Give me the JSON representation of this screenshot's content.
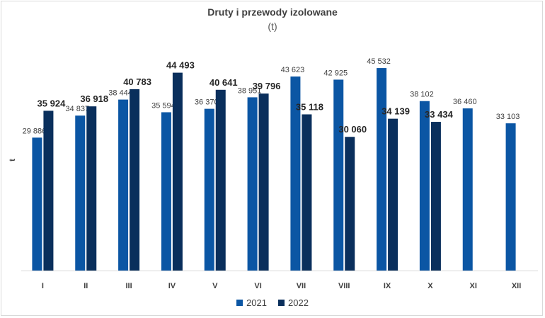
{
  "chart_data": {
    "type": "bar",
    "title": "Druty i przewody izolowane",
    "subtitle": "(t)",
    "ylabel": "t",
    "xlabel": "",
    "ylim": [
      0,
      46500
    ],
    "categories": [
      "I",
      "II",
      "III",
      "IV",
      "V",
      "VI",
      "VII",
      "VIII",
      "IX",
      "X",
      "XI",
      "XII"
    ],
    "series": [
      {
        "name": "2021",
        "color": "#0b56a4",
        "values": [
          29886,
          34837,
          38444,
          35594,
          36370,
          38951,
          43623,
          42925,
          45532,
          38102,
          36460,
          33103
        ],
        "labels": [
          "29 886",
          "34 837",
          "38 444",
          "35 594",
          "36 370",
          "38 951",
          "43 623",
          "42 925",
          "45 532",
          "38 102",
          "36 460",
          "33 103"
        ]
      },
      {
        "name": "2022",
        "color": "#0a2f5c",
        "values": [
          35924,
          36918,
          40783,
          44493,
          40641,
          39796,
          35118,
          30060,
          34139,
          33434,
          null,
          null
        ],
        "labels": [
          "35 924",
          "36 918",
          "40 783",
          "44 493",
          "40 641",
          "39 796",
          "35 118",
          "30 060",
          "34 139",
          "33 434",
          "",
          ""
        ]
      }
    ],
    "legend": "bottom",
    "grid": false
  }
}
